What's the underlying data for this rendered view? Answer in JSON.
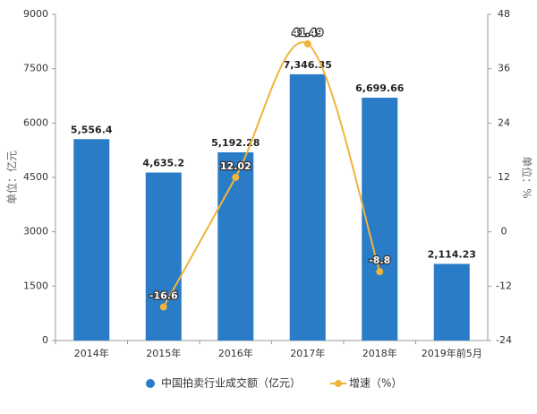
{
  "chart_data": {
    "type": "bar",
    "categories": [
      "2014年",
      "2015年",
      "2016年",
      "2017年",
      "2018年",
      "2019年前5月"
    ],
    "series": [
      {
        "name": "中国拍卖行业成交额（亿元）",
        "type": "bar",
        "color": "#2a7cc7",
        "axis": "y",
        "values": [
          5556.4,
          4635.2,
          5192.28,
          7346.35,
          6699.66,
          2114.23
        ],
        "value_labels": [
          "5,556.4",
          "4,635.2",
          "5,192.28",
          "7,346.35",
          "6,699.66",
          "2,114.23"
        ]
      },
      {
        "name": "增速（%）",
        "type": "line",
        "color": "#f0b43c",
        "axis": "y2",
        "values": [
          null,
          -16.6,
          12.02,
          41.49,
          -8.8,
          null
        ]
      }
    ],
    "ylabel": "单位：亿元",
    "y2label": "单位：%",
    "ylim": [
      0,
      9000
    ],
    "yticks": [
      0,
      1500,
      3000,
      4500,
      6000,
      7500,
      9000
    ],
    "y2lim": [
      -24,
      48
    ],
    "y2ticks": [
      -24,
      -12,
      0,
      12,
      24,
      36,
      48
    ],
    "legend": "bottom"
  }
}
